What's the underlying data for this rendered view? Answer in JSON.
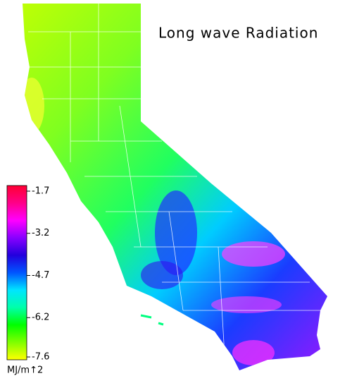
{
  "title": "Long wave Radiation",
  "colorbar": {
    "unit": "MJ/m↑2",
    "lim": [
      -7.7,
      -1.5
    ],
    "ticks": [
      -1.7,
      -3.2,
      -4.7,
      -6.2,
      -7.6
    ],
    "colors": [
      "#ffff00",
      "#7fff00",
      "#00ff00",
      "#00ffaa",
      "#00e5ff",
      "#0055ff",
      "#2200dd",
      "#8800ff",
      "#ff00ff",
      "#ff0088",
      "#ff0033"
    ]
  }
}
